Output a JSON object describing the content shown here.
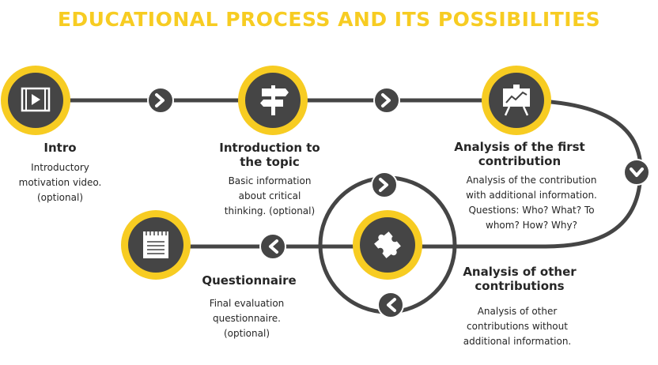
{
  "title": "EDUCATIONAL PROCESS AND ITS POSSIBILITIES",
  "colors": {
    "accent": "#f7cc22",
    "dark": "#454545",
    "text": "#262626",
    "background": "#ffffff"
  },
  "steps": [
    {
      "icon": "video-play-icon",
      "heading": "Intro",
      "description": "Introductory\nmotivation video.\n(optional)"
    },
    {
      "icon": "signpost-icon",
      "heading": "Introduction to\nthe topic",
      "description": "Basic information\nabout critical\nthinking. (optional)"
    },
    {
      "icon": "presentation-chart-icon",
      "heading": "Analysis of the first\ncontribution",
      "description": "Analysis of the contribution\nwith additional information.\nQuestions: Who? What? To\nwhom? How? Why?"
    },
    {
      "icon": "puzzle-piece-icon",
      "heading": "Analysis of other\ncontributions",
      "description": "Analysis of other\ncontributions without\nadditional information."
    },
    {
      "icon": "notepad-icon",
      "heading": "Questionnaire",
      "description": "Final evaluation\nquestionnaire.\n(optional)"
    }
  ]
}
